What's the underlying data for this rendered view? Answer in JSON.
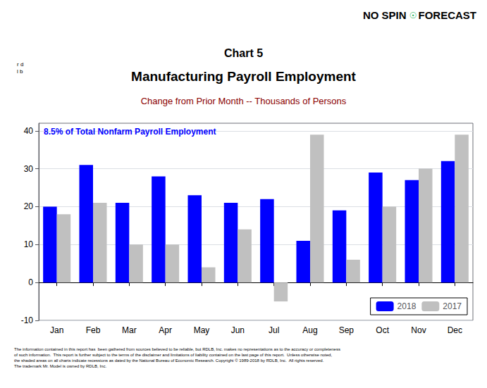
{
  "chart_data": {
    "type": "bar",
    "title": "Manufacturing Payroll Employment",
    "subtitle": "Change from Prior Month -- Thousands of Persons",
    "annotations": [
      "NO SPIN",
      "☉",
      "FORECAST",
      "Chart 5",
      "r d\nl b",
      "8.5% of Total Nonfarm Payroll Employment",
      "The information contained in this report has  been gathered from sources believed to be reliable, but RDLB, Inc. makes no representations as to the accuracy or completeness\nof such information.  This report is further subject to the terms of the disclaimer and limitations of liability contained on the last page of this report.  Unless otherwise noted,\nthe shaded areas on all charts indicate recessions as dated by the National Bureau of Economic Research. Copyright © 1989-2018 by RDLB, Inc.  All rights reserved.\nThe trademark Mr. Model is owned by RDLB, Inc."
    ],
    "categories": [
      "Jan",
      "Feb",
      "Mar",
      "Apr",
      "May",
      "Jun",
      "Jul",
      "Aug",
      "Sep",
      "Oct",
      "Nov",
      "Dec"
    ],
    "series": [
      {
        "name": "2018",
        "color": "#0000FF",
        "values": [
          20,
          31,
          21,
          28,
          23,
          21,
          22,
          11,
          19,
          29,
          27,
          32
        ]
      },
      {
        "name": "2017",
        "color": "#C0C0C0",
        "values": [
          18,
          21,
          10,
          10,
          4,
          14,
          -5,
          39,
          6,
          20,
          30,
          39
        ]
      }
    ],
    "ylim": [
      -10,
      42
    ],
    "yticks": [
      -10,
      0,
      10,
      20,
      30,
      40
    ],
    "grid": true,
    "legend": "lower right"
  }
}
